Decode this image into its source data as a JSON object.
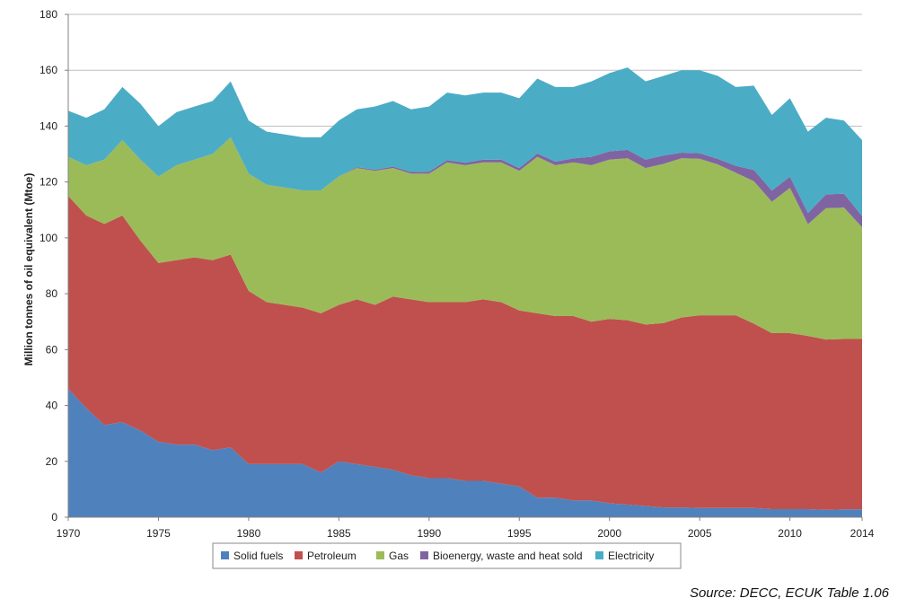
{
  "chart_data": {
    "type": "area",
    "stacked": true,
    "title": "",
    "xlabel": "",
    "ylabel": "Million tonnes of oil equivalent (Mtoe)",
    "xlim": [
      1970,
      2014
    ],
    "ylim": [
      0,
      180
    ],
    "y_ticks": [
      0,
      20,
      40,
      60,
      80,
      100,
      120,
      140,
      160,
      180
    ],
    "x_ticks": [
      1970,
      1975,
      1980,
      1985,
      1990,
      1995,
      2000,
      2005,
      2010,
      2014
    ],
    "grid": "horizontal",
    "legend_position": "bottom",
    "x": [
      1970,
      1971,
      1972,
      1973,
      1974,
      1975,
      1976,
      1977,
      1978,
      1979,
      1980,
      1981,
      1982,
      1983,
      1984,
      1985,
      1986,
      1987,
      1988,
      1989,
      1990,
      1991,
      1992,
      1993,
      1994,
      1995,
      1996,
      1997,
      1998,
      1999,
      2000,
      2001,
      2002,
      2003,
      2004,
      2005,
      2006,
      2007,
      2008,
      2009,
      2010,
      2011,
      2012,
      2013,
      2014
    ],
    "series": [
      {
        "name": "Solid fuels",
        "color": "#4f81bd",
        "values": [
          46,
          39,
          33,
          34,
          31,
          27,
          26,
          26,
          24,
          25,
          19,
          19,
          19,
          19,
          16,
          20,
          19,
          18,
          17,
          15,
          14,
          14,
          13,
          13,
          12,
          11,
          7,
          7,
          6,
          6,
          5,
          4.5,
          4,
          3.5,
          3.5,
          3.3,
          3.3,
          3.3,
          3.3,
          2.9,
          2.9,
          2.9,
          2.6,
          2.8,
          2.8
        ]
      },
      {
        "name": "Petroleum",
        "color": "#c0504d",
        "values": [
          69,
          69,
          72,
          74,
          68,
          64,
          66,
          67,
          68,
          69,
          62,
          58,
          57,
          56,
          57,
          56,
          59,
          58,
          62,
          63,
          63,
          63,
          64,
          65,
          65,
          63,
          66,
          65,
          66,
          64,
          66,
          66,
          65,
          66,
          68,
          69,
          69,
          69,
          66,
          63,
          63,
          62,
          61,
          61,
          61
        ]
      },
      {
        "name": "Gas",
        "color": "#9bbb59",
        "values": [
          14,
          18,
          23,
          27,
          29,
          31,
          34,
          35,
          38,
          42,
          42,
          42,
          42,
          42,
          44,
          46,
          47,
          48,
          46,
          45,
          46,
          50,
          49,
          49,
          50,
          50,
          56,
          54,
          55,
          56,
          57,
          58,
          56,
          57,
          57,
          56,
          54,
          51,
          51,
          47,
          52,
          40,
          47,
          47,
          40
        ]
      },
      {
        "name": "Bioenergy, waste and heat sold",
        "color": "#8064a2",
        "values": [
          0,
          0,
          0,
          0,
          0,
          0,
          0,
          0,
          0,
          0,
          0,
          0,
          0,
          0,
          0,
          0,
          0.3,
          0.4,
          0.5,
          0.6,
          0.7,
          0.8,
          0.9,
          1,
          1,
          1,
          1.2,
          1.3,
          1.5,
          3,
          3,
          3,
          3,
          3,
          2,
          2,
          2,
          2.5,
          4,
          4,
          4,
          4,
          5,
          5,
          4
        ]
      },
      {
        "name": "Electricity",
        "color": "#4bacc6",
        "values": [
          16.5,
          17,
          18,
          19,
          20,
          18,
          19,
          19,
          19,
          20,
          19,
          19,
          19,
          19,
          19,
          20,
          20.7,
          22.6,
          23.5,
          22.4,
          23.3,
          24.2,
          24.1,
          24,
          24,
          25,
          26.8,
          26.7,
          25.5,
          27,
          28,
          29.5,
          28,
          28.5,
          29.5,
          29.7,
          29.7,
          28.2,
          30.2,
          27.1,
          28.1,
          29.1,
          27.4,
          26.2,
          27.2
        ]
      }
    ]
  },
  "source": "Source: DECC, ECUK Table 1.06"
}
